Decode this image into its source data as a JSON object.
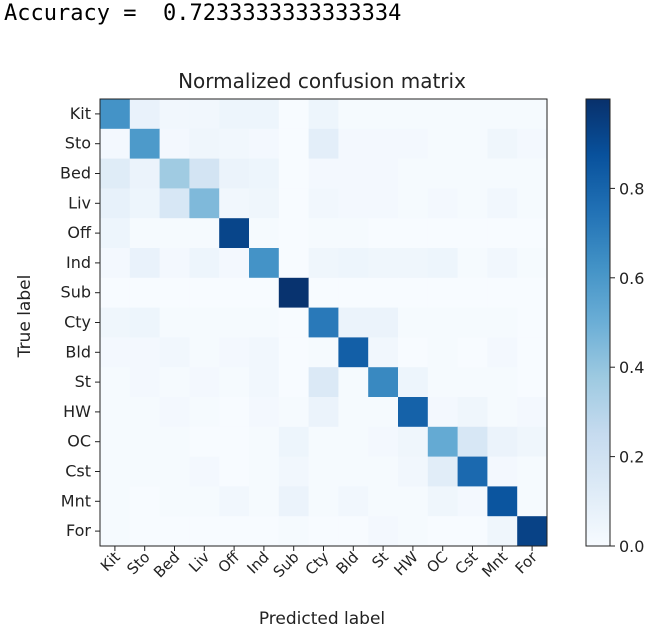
{
  "header": {
    "accuracy_label": "Accuracy = ",
    "accuracy_value": "0.7233333333333334"
  },
  "chart_data": {
    "type": "heatmap",
    "title": "Normalized confusion matrix",
    "xlabel": "Predicted label",
    "ylabel": "True label",
    "labels": [
      "Kit",
      "Sto",
      "Bed",
      "Liv",
      "Off",
      "Ind",
      "Sub",
      "Cty",
      "Bld",
      "St",
      "HW",
      "OC",
      "Cst",
      "Mnt",
      "For"
    ],
    "colormap": "Blues",
    "colorbar": {
      "range": [
        0.0,
        1.0
      ],
      "ticks": [
        "0.0",
        "0.2",
        "0.4",
        "0.6",
        "0.8"
      ]
    },
    "matrix": [
      [
        0.62,
        0.07,
        0.03,
        0.03,
        0.05,
        0.05,
        0.0,
        0.05,
        0.01,
        0.01,
        0.01,
        0.01,
        0.01,
        0.01,
        0.01
      ],
      [
        0.02,
        0.59,
        0.02,
        0.04,
        0.03,
        0.02,
        0.0,
        0.1,
        0.02,
        0.02,
        0.02,
        0.01,
        0.01,
        0.04,
        0.02
      ],
      [
        0.12,
        0.06,
        0.37,
        0.18,
        0.06,
        0.05,
        0.0,
        0.02,
        0.02,
        0.02,
        0.01,
        0.01,
        0.01,
        0.01,
        0.01
      ],
      [
        0.08,
        0.05,
        0.16,
        0.45,
        0.03,
        0.04,
        0.0,
        0.03,
        0.02,
        0.02,
        0.01,
        0.02,
        0.01,
        0.03,
        0.01
      ],
      [
        0.05,
        0.01,
        0.01,
        0.01,
        0.92,
        0.01,
        0.0,
        0.01,
        0.01,
        0.0,
        0.0,
        0.0,
        0.0,
        0.0,
        0.0
      ],
      [
        0.02,
        0.07,
        0.02,
        0.05,
        0.02,
        0.62,
        0.0,
        0.04,
        0.05,
        0.04,
        0.04,
        0.05,
        0.01,
        0.03,
        0.01
      ],
      [
        0.0,
        0.0,
        0.0,
        0.0,
        0.0,
        0.0,
        0.99,
        0.0,
        0.0,
        0.0,
        0.0,
        0.0,
        0.0,
        0.0,
        0.0
      ],
      [
        0.04,
        0.05,
        0.01,
        0.01,
        0.01,
        0.01,
        0.0,
        0.72,
        0.06,
        0.06,
        0.01,
        0.01,
        0.01,
        0.01,
        0.0
      ],
      [
        0.02,
        0.02,
        0.03,
        0.01,
        0.02,
        0.03,
        0.0,
        0.01,
        0.82,
        0.03,
        0.0,
        0.01,
        0.0,
        0.02,
        0.0
      ],
      [
        0.01,
        0.02,
        0.01,
        0.02,
        0.01,
        0.03,
        0.0,
        0.14,
        0.01,
        0.66,
        0.05,
        0.01,
        0.01,
        0.01,
        0.0
      ],
      [
        0.01,
        0.01,
        0.02,
        0.01,
        0.0,
        0.02,
        0.01,
        0.06,
        0.01,
        0.01,
        0.81,
        0.02,
        0.04,
        0.01,
        0.02
      ],
      [
        0.01,
        0.01,
        0.01,
        0.0,
        0.0,
        0.01,
        0.05,
        0.01,
        0.01,
        0.02,
        0.04,
        0.52,
        0.16,
        0.06,
        0.04
      ],
      [
        0.01,
        0.01,
        0.01,
        0.02,
        0.0,
        0.01,
        0.03,
        0.01,
        0.01,
        0.01,
        0.03,
        0.11,
        0.78,
        0.02,
        0.01
      ],
      [
        0.01,
        0.0,
        0.01,
        0.01,
        0.03,
        0.01,
        0.06,
        0.01,
        0.03,
        0.01,
        0.01,
        0.04,
        0.02,
        0.86,
        0.01
      ],
      [
        0.01,
        0.0,
        0.0,
        0.0,
        0.0,
        0.0,
        0.01,
        0.0,
        0.0,
        0.02,
        0.01,
        0.0,
        0.0,
        0.04,
        0.93
      ]
    ]
  }
}
